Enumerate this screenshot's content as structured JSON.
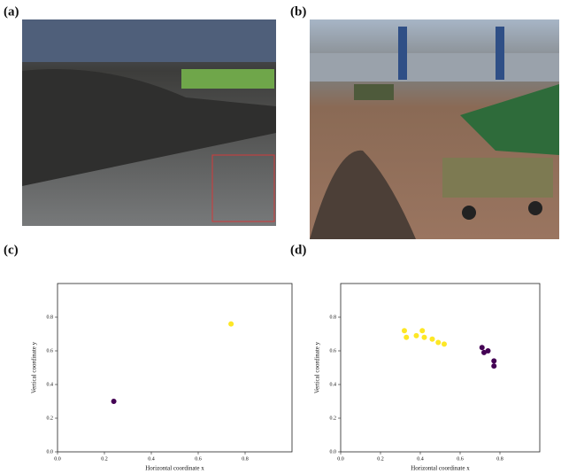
{
  "panel_labels": [
    "(a)",
    "(b)",
    "(c)",
    "(d)"
  ],
  "chart_data": [
    {
      "type": "scatter",
      "x_label": "Horizontal coordinate x",
      "y_label": "Vertical coordinate y",
      "xlim": [
        0,
        1.0
      ],
      "ylim": [
        0,
        1.0
      ],
      "xticks": [
        {
          "value": 0,
          "label": "0.0"
        },
        {
          "value": 0.2,
          "label": "0.2"
        },
        {
          "value": 0.4,
          "label": "0.4"
        },
        {
          "value": 0.6,
          "label": "0.6"
        },
        {
          "value": 0.8,
          "label": "0.8"
        }
      ],
      "yticks": [
        {
          "value": 0,
          "label": "0.0"
        },
        {
          "value": 0.2,
          "label": "0.2"
        },
        {
          "value": 0.4,
          "label": "0.4"
        },
        {
          "value": 0.6,
          "label": "0.6"
        },
        {
          "value": 0.8,
          "label": "0.8"
        }
      ],
      "series": [
        {
          "color": "#440154",
          "x": [
            0.24
          ],
          "values": [
            0.3
          ]
        },
        {
          "color": "#fde725",
          "x": [
            0.74
          ],
          "values": [
            0.76
          ]
        }
      ]
    },
    {
      "type": "scatter",
      "x_label": "Horizontal coordinate x",
      "y_label": "Vertical coordinate y",
      "xlim": [
        0,
        1.0
      ],
      "ylim": [
        0,
        1.0
      ],
      "xticks": [
        {
          "value": 0,
          "label": "0.0"
        },
        {
          "value": 0.2,
          "label": "0.2"
        },
        {
          "value": 0.4,
          "label": "0.4"
        },
        {
          "value": 0.6,
          "label": "0.6"
        },
        {
          "value": 0.8,
          "label": "0.8"
        }
      ],
      "yticks": [
        {
          "value": 0,
          "label": "0.0"
        },
        {
          "value": 0.2,
          "label": "0.2"
        },
        {
          "value": 0.4,
          "label": "0.4"
        },
        {
          "value": 0.6,
          "label": "0.6"
        },
        {
          "value": 0.8,
          "label": "0.8"
        }
      ],
      "series": [
        {
          "color": "#fde725",
          "x": [
            0.32,
            0.33,
            0.38,
            0.41,
            0.42,
            0.46,
            0.49,
            0.52
          ],
          "values": [
            0.72,
            0.68,
            0.69,
            0.72,
            0.68,
            0.67,
            0.65,
            0.64
          ]
        },
        {
          "color": "#440154",
          "x": [
            0.71,
            0.72,
            0.74,
            0.77,
            0.77
          ],
          "values": [
            0.62,
            0.59,
            0.6,
            0.54,
            0.51
          ]
        }
      ]
    }
  ]
}
